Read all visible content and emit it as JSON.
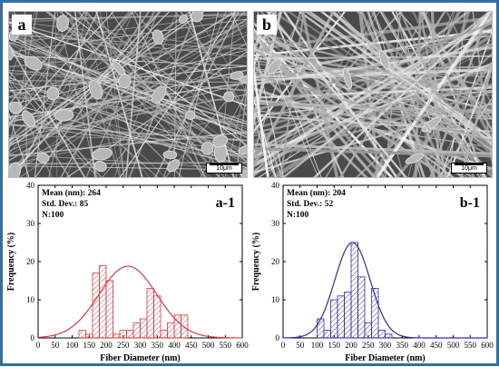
{
  "panels": {
    "a": {
      "label": "a",
      "scale_label": "10μm"
    },
    "b": {
      "label": "b",
      "scale_label": "10μm"
    }
  },
  "chart_data": [
    {
      "type": "bar",
      "panel_label": "a-1",
      "color": "#e8383d",
      "xlabel": "Fiber Diameter (nm)",
      "ylabel": "Frequency (%)",
      "xlim": [
        0,
        600
      ],
      "ylim": [
        0,
        40
      ],
      "xticks": [
        0,
        50,
        100,
        150,
        200,
        250,
        300,
        350,
        400,
        450,
        500,
        550,
        600
      ],
      "yticks": [
        0,
        10,
        20,
        30,
        40
      ],
      "bin_width": 20,
      "bins": [
        {
          "x": 130,
          "value": 2
        },
        {
          "x": 150,
          "value": 1
        },
        {
          "x": 170,
          "value": 17
        },
        {
          "x": 190,
          "value": 19
        },
        {
          "x": 210,
          "value": 15
        },
        {
          "x": 230,
          "value": 1
        },
        {
          "x": 250,
          "value": 2
        },
        {
          "x": 270,
          "value": 2
        },
        {
          "x": 290,
          "value": 4
        },
        {
          "x": 310,
          "value": 5
        },
        {
          "x": 330,
          "value": 13
        },
        {
          "x": 350,
          "value": 11
        },
        {
          "x": 370,
          "value": 2
        },
        {
          "x": 390,
          "value": 4
        },
        {
          "x": 410,
          "value": 6
        },
        {
          "x": 430,
          "value": 6
        }
      ],
      "fit": {
        "mean": 264,
        "sd": 85,
        "peak": 18.8
      },
      "stats": [
        "Mean (nm): 264",
        "Std. Dev.: 85",
        "N:100"
      ]
    },
    {
      "type": "bar",
      "panel_label": "b-1",
      "color": "#2b2bb8",
      "xlabel": "Fiber Diameter (nm)",
      "ylabel": "Frequency (%)",
      "xlim": [
        0,
        600
      ],
      "ylim": [
        0,
        40
      ],
      "xticks": [
        0,
        50,
        100,
        150,
        200,
        250,
        300,
        350,
        400,
        450,
        500,
        550,
        600
      ],
      "yticks": [
        0,
        10,
        20,
        30,
        40
      ],
      "bin_width": 20,
      "bins": [
        {
          "x": 110,
          "value": 5
        },
        {
          "x": 130,
          "value": 2
        },
        {
          "x": 150,
          "value": 10
        },
        {
          "x": 170,
          "value": 11
        },
        {
          "x": 190,
          "value": 12
        },
        {
          "x": 210,
          "value": 25
        },
        {
          "x": 230,
          "value": 16
        },
        {
          "x": 250,
          "value": 4
        },
        {
          "x": 270,
          "value": 13
        },
        {
          "x": 290,
          "value": 2
        },
        {
          "x": 310,
          "value": 1
        }
      ],
      "fit": {
        "mean": 204,
        "sd": 52,
        "peak": 25
      },
      "stats": [
        "Mean (nm): 204",
        "Std. Dev.: 52",
        "N:100"
      ]
    }
  ]
}
